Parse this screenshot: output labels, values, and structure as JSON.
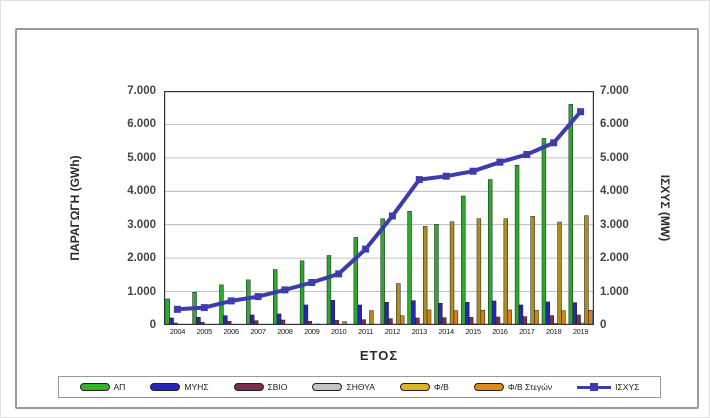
{
  "figure": {
    "y_axis_left_title": "ΠΑΡΑΓΩΓΗ (GWh)",
    "y_axis_right_title": "ΙΣΧΥΣ (MW)",
    "x_axis_title": "ΕΤΟΣ"
  },
  "chart_data": {
    "type": "combo-bar-line",
    "title": "",
    "xlabel": "ΕΤΟΣ",
    "ylabel_left": "ΠΑΡΑΓΩΓΗ (GWh)",
    "ylabel_right": "ΙΣΧΥΣ (MW)",
    "ylim_left": [
      0,
      7000
    ],
    "ylim_right": [
      0,
      7000
    ],
    "grid": true,
    "legend_position": "bottom",
    "ytick_labels_top_to_bottom": [
      "7.000",
      "6.000",
      "5.000",
      "4.000",
      "3.000",
      "2.000",
      "1.000",
      "0"
    ],
    "ytick_values_top_to_bottom": [
      7000,
      6000,
      5000,
      4000,
      3000,
      2000,
      1000,
      0
    ],
    "categories": [
      "2004",
      "2005",
      "2006",
      "2007",
      "2008",
      "2009",
      "2010",
      "2011",
      "2012",
      "2013",
      "2014",
      "2015",
      "2016",
      "2017",
      "2018",
      "2019"
    ],
    "series": [
      {
        "key": "ap",
        "name": "ΑΠ",
        "type": "bar",
        "axis": "left",
        "unit": "GWh",
        "color": "#2DAA2D",
        "values": [
          780,
          980,
          1200,
          1350,
          1660,
          1920,
          2080,
          2620,
          3180,
          3400,
          3010,
          3860,
          4350,
          4780,
          5580,
          6600
        ]
      },
      {
        "key": "myhs",
        "name": "ΜΥΗΣ",
        "type": "bar",
        "axis": "left",
        "unit": "GWh",
        "color": "#2626B8",
        "values": [
          210,
          230,
          280,
          300,
          330,
          600,
          740,
          600,
          680,
          730,
          650,
          680,
          720,
          600,
          690,
          670
        ]
      },
      {
        "key": "svio",
        "name": "ΣΒΙΟ",
        "type": "bar",
        "axis": "left",
        "unit": "GWh",
        "color": "#7A2E52",
        "values": [
          60,
          80,
          110,
          130,
          150,
          110,
          140,
          160,
          190,
          210,
          220,
          230,
          240,
          250,
          280,
          300
        ]
      },
      {
        "key": "sithya",
        "name": "ΣΗΘΥΑ",
        "type": "bar",
        "axis": "left",
        "unit": "GWh",
        "color": "#C4C4C4",
        "values": [
          0,
          0,
          0,
          0,
          0,
          10,
          15,
          20,
          25,
          30,
          30,
          35,
          40,
          40,
          50,
          60
        ]
      },
      {
        "key": "fv",
        "name": "Φ/Β",
        "type": "bar",
        "axis": "left",
        "unit": "GWh",
        "color": "#AD8E1F",
        "values": [
          0,
          0,
          0,
          0,
          5,
          30,
          100,
          430,
          1240,
          2950,
          3090,
          3180,
          3180,
          3250,
          3080,
          3270
        ]
      },
      {
        "key": "fv-stegon",
        "name": "Φ/Β Στεγών",
        "type": "bar",
        "axis": "left",
        "unit": "GWh",
        "color": "#D5821B",
        "values": [
          0,
          0,
          0,
          0,
          0,
          0,
          0,
          20,
          280,
          450,
          430,
          440,
          450,
          440,
          430,
          440
        ]
      },
      {
        "key": "isxys",
        "name": "ΙΣΧΥΣ",
        "type": "line",
        "axis": "right",
        "unit": "MW",
        "color": "#3C3CAC",
        "values": [
          470,
          520,
          720,
          850,
          1050,
          1270,
          1530,
          2270,
          3260,
          4350,
          4450,
          4600,
          4870,
          5100,
          5450,
          6380
        ]
      }
    ],
    "legend": [
      {
        "key": "ap",
        "label": "ΑΠ",
        "swatch": "bar",
        "color": "#2DB42D"
      },
      {
        "key": "myhs",
        "label": "ΜΥΗΣ",
        "swatch": "bar",
        "color": "#2626B8"
      },
      {
        "key": "svio",
        "label": "ΣΒΙΟ",
        "swatch": "bar",
        "color": "#7A2E52"
      },
      {
        "key": "sithya",
        "label": "ΣΗΘΥΑ",
        "swatch": "bar",
        "color": "#C4C4C4"
      },
      {
        "key": "fv",
        "label": "Φ/Β",
        "swatch": "bar",
        "color": "#D9B525"
      },
      {
        "key": "fv-stegon",
        "label": "Φ/Β Στεγών",
        "swatch": "bar",
        "color": "#E08A1E"
      },
      {
        "key": "isxys",
        "label": "ΙΣΧΥΣ",
        "swatch": "line",
        "color": "#3C3CAC"
      }
    ]
  }
}
